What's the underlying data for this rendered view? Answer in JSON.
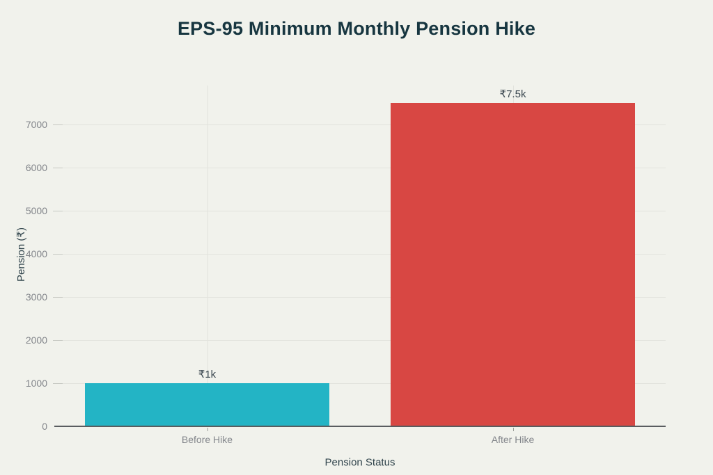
{
  "chart_data": {
    "type": "bar",
    "title": "EPS-95 Minimum Monthly Pension Hike",
    "xlabel": "Pension Status",
    "ylabel": "Pension (₹)",
    "categories": [
      "Before Hike",
      "After Hike"
    ],
    "values": [
      1000,
      7500
    ],
    "bar_labels": [
      "₹1k",
      "₹7.5k"
    ],
    "bar_colors": [
      "#23b4c5",
      "#d84743"
    ],
    "yticks": [
      0,
      1000,
      2000,
      3000,
      4000,
      5000,
      6000,
      7000
    ],
    "ylim": [
      0,
      7900
    ],
    "grid": true,
    "legend": "none"
  },
  "colors": {
    "background": "#f1f2ec",
    "title": "#173640",
    "axis_label": "#2f434b",
    "tick_label": "#83868b",
    "gridline": "#e2e3dd",
    "axis_line": "#5a5d60",
    "value_label": "#39464e"
  }
}
